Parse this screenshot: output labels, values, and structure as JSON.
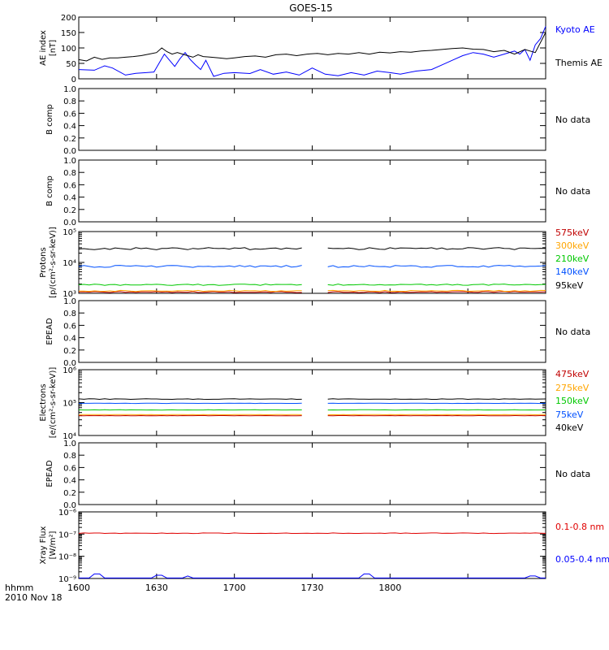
{
  "title": "GOES-15",
  "footer": {
    "time_label": "hhmm",
    "date_label": "2010 Nov 18"
  },
  "x_axis": {
    "ticks": [
      1600,
      1630,
      1700,
      1730,
      1800
    ],
    "tick_labels": [
      "1600",
      "1630",
      "1700",
      "1730",
      "1800"
    ]
  },
  "colors": {
    "black": "#000000",
    "blue": "#0000ff",
    "dark_red": "#c00000",
    "orange": "#ffa500",
    "green": "#00c800",
    "mid_blue": "#0050ff",
    "red": "#e00000"
  },
  "chart_data": [
    {
      "type": "line",
      "id": "ae",
      "ylabel": "AE index\n[nT]",
      "ylim": [
        0,
        200
      ],
      "yticks": [
        0,
        50,
        100,
        150,
        200
      ],
      "x_unit": "minutes after 1600",
      "series": [
        {
          "name": "Kyoto AE",
          "color": "#0000ff",
          "x": [
            0,
            6,
            10,
            13,
            18,
            22,
            26,
            29,
            33,
            35,
            37,
            39,
            41,
            43,
            45,
            47,
            49,
            52,
            56,
            60,
            66,
            70,
            75,
            80,
            85,
            90,
            95,
            100,
            105,
            110,
            115,
            120,
            124,
            130,
            136,
            140,
            144,
            148,
            152,
            156,
            160,
            164,
            168,
            170,
            172,
            174,
            176,
            178,
            180
          ],
          "y": [
            30,
            28,
            42,
            35,
            12,
            18,
            20,
            22,
            80,
            60,
            40,
            65,
            85,
            62,
            45,
            30,
            60,
            8,
            18,
            20,
            17,
            30,
            15,
            22,
            12,
            35,
            15,
            10,
            20,
            12,
            25,
            20,
            15,
            25,
            30,
            45,
            60,
            75,
            85,
            80,
            70,
            80,
            90,
            80,
            95,
            60,
            110,
            130,
            170
          ]
        },
        {
          "name": "Themis AE",
          "color": "#000000",
          "x": [
            0,
            3,
            6,
            9,
            12,
            15,
            18,
            21,
            24,
            27,
            30,
            32,
            34,
            36,
            38,
            40,
            42,
            44,
            46,
            48,
            51,
            54,
            57,
            60,
            64,
            68,
            72,
            76,
            80,
            84,
            88,
            92,
            96,
            100,
            104,
            108,
            112,
            116,
            120,
            124,
            128,
            132,
            136,
            140,
            144,
            148,
            152,
            156,
            160,
            164,
            168,
            172,
            176,
            180
          ],
          "y": [
            62,
            58,
            70,
            63,
            68,
            68,
            70,
            72,
            75,
            80,
            85,
            100,
            88,
            80,
            85,
            80,
            75,
            70,
            78,
            72,
            70,
            68,
            65,
            68,
            72,
            74,
            70,
            78,
            80,
            75,
            80,
            82,
            78,
            82,
            80,
            85,
            80,
            86,
            84,
            88,
            86,
            90,
            92,
            95,
            98,
            100,
            96,
            95,
            88,
            92,
            80,
            95,
            85,
            150
          ]
        }
      ]
    },
    {
      "type": "line",
      "id": "bcomp1",
      "ylabel": "B comp",
      "ylim": [
        0,
        1
      ],
      "yticks": [
        0,
        0.2,
        0.4,
        0.6,
        0.8,
        1.0
      ],
      "tick_labels": [
        "0.0",
        "0.2",
        "0.4",
        "0.6",
        "0.8",
        "1.0"
      ],
      "status": "No data",
      "series": []
    },
    {
      "type": "line",
      "id": "bcomp2",
      "ylabel": "B comp",
      "ylim": [
        0,
        1
      ],
      "yticks": [
        0,
        0.2,
        0.4,
        0.6,
        0.8,
        1.0
      ],
      "tick_labels": [
        "0.0",
        "0.2",
        "0.4",
        "0.6",
        "0.8",
        "1.0"
      ],
      "status": "No data",
      "series": []
    },
    {
      "type": "line",
      "id": "protons",
      "ylabel": "Protons\n[p/(cm²-s-sr-keV)]",
      "log": true,
      "ylim": [
        1000,
        100000
      ],
      "tick_labels": [
        "10³",
        "10⁴",
        "10⁵"
      ],
      "gap": [
        86,
        96
      ],
      "series": [
        {
          "name": "575keV",
          "color": "#c00000",
          "base": 1100,
          "amp": 0.04
        },
        {
          "name": "300keV",
          "color": "#ffa500",
          "base": 1200,
          "amp": 0.04
        },
        {
          "name": "210keV",
          "color": "#00c800",
          "base": 1900,
          "amp": 0.05
        },
        {
          "name": "140keV",
          "color": "#0050ff",
          "base": 7500,
          "amp": 0.08
        },
        {
          "name": "95keV",
          "color": "#000000",
          "base": 28000,
          "amp": 0.08
        }
      ]
    },
    {
      "type": "line",
      "id": "epead1",
      "ylabel": "EPEAD",
      "ylim": [
        0,
        1
      ],
      "yticks": [
        0,
        0.2,
        0.4,
        0.6,
        0.8,
        1.0
      ],
      "tick_labels": [
        "0.0",
        "0.2",
        "0.4",
        "0.6",
        "0.8",
        "1.0"
      ],
      "status": "No data",
      "series": []
    },
    {
      "type": "line",
      "id": "electrons",
      "ylabel": "Electrons\n[e/(cm²-s-sr-keV)]",
      "log": true,
      "ylim": [
        10000,
        1000000
      ],
      "tick_labels": [
        "10⁴",
        "10⁵",
        "10⁶"
      ],
      "gap": [
        86,
        96
      ],
      "series": [
        {
          "name": "475keV",
          "color": "#c00000",
          "base": 40000,
          "amp": 0.01
        },
        {
          "name": "275keV",
          "color": "#ffa500",
          "base": 43000,
          "amp": 0.01
        },
        {
          "name": "150keV",
          "color": "#00c800",
          "base": 60000,
          "amp": 0.01
        },
        {
          "name": "75keV",
          "color": "#0050ff",
          "base": 95000,
          "amp": 0.01
        },
        {
          "name": "40keV",
          "color": "#000000",
          "base": 128000,
          "amp": 0.02
        }
      ]
    },
    {
      "type": "line",
      "id": "epead2",
      "ylabel": "EPEAD",
      "ylim": [
        0,
        1
      ],
      "yticks": [
        0,
        0.2,
        0.4,
        0.6,
        0.8,
        1.0
      ],
      "tick_labels": [
        "0.0",
        "0.2",
        "0.4",
        "0.6",
        "0.8",
        "1.0"
      ],
      "status": "No data",
      "series": []
    },
    {
      "type": "line",
      "id": "xray",
      "ylabel": "Xray Flux\n[W/m²]",
      "log": true,
      "ylim": [
        1e-09,
        1e-06
      ],
      "tick_labels": [
        "10⁻⁹",
        "10⁻⁸",
        "10⁻⁷",
        "10⁻⁶"
      ],
      "series": [
        {
          "name": "0.1-0.8 nm",
          "color": "#e00000",
          "base": 1.1e-07,
          "amp": 0.03
        },
        {
          "name": "0.05-0.4 nm",
          "color": "#0000ff",
          "floor": true
        }
      ]
    }
  ]
}
